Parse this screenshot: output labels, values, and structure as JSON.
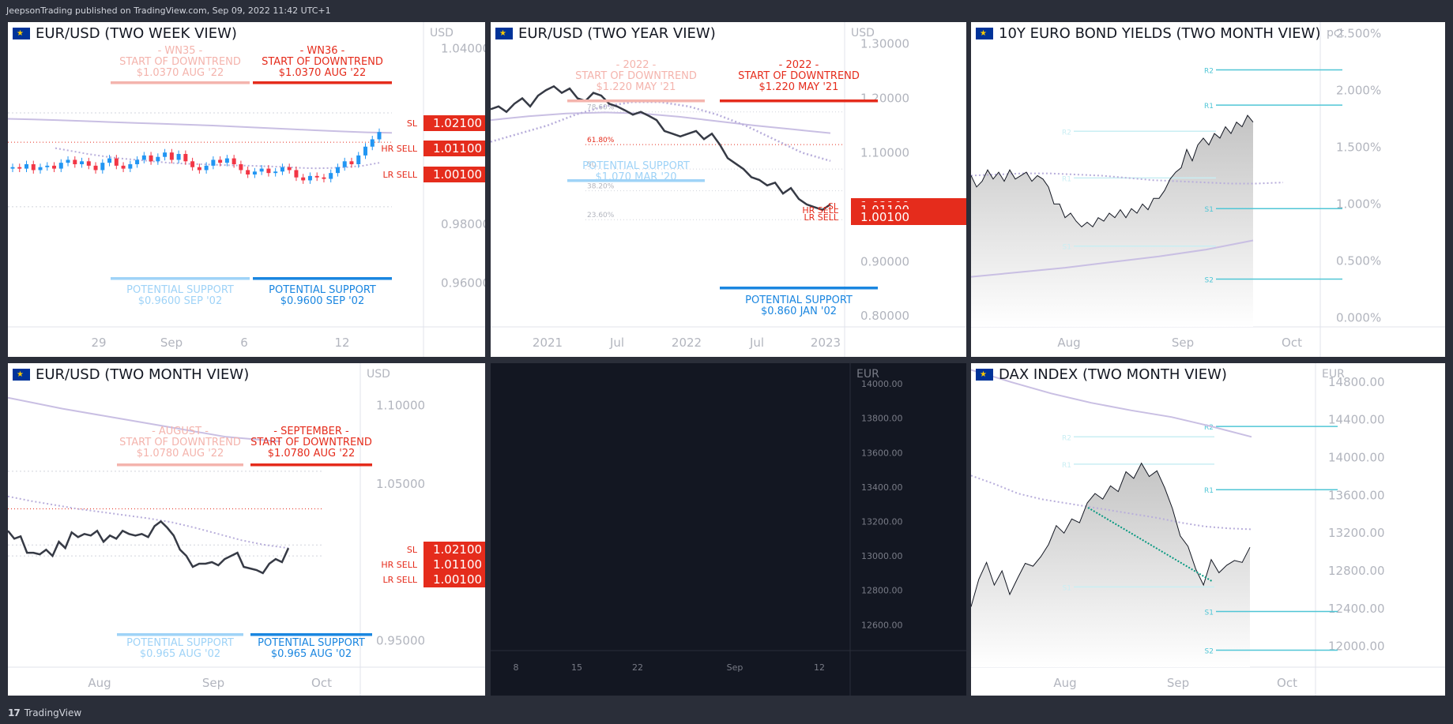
{
  "header": {
    "attribution": "JeepsonTrading published on TradingView.com, Sep 09, 2022 11:42 UTC+1"
  },
  "footer": {
    "brand": "TradingView"
  },
  "chart_data": [
    {
      "id": "p1",
      "type": "candlestick",
      "title": "EUR/USD (TWO WEEK VIEW)",
      "currency": "USD",
      "ylim": [
        0.945,
        1.049
      ],
      "y_ticks": [
        "1.04000",
        "0.98000",
        "0.96000"
      ],
      "x_ticks": [
        "29",
        "Sep",
        "6",
        "12"
      ],
      "levels": [
        {
          "label": "SL",
          "value": "1.02100",
          "price": 1.021
        },
        {
          "label": "HR SELL",
          "value": "1.01100",
          "price": 1.011
        },
        {
          "label": "LR SELL",
          "value": "1.00100",
          "price": 1.001
        }
      ],
      "annotations": [
        {
          "lines": [
            "- WN35 -",
            "START OF DOWNTREND",
            "$1.0370 AUG '22"
          ],
          "color": "#f4b4ad"
        },
        {
          "lines": [
            "- WN36 -",
            "START OF DOWNTREND",
            "$1.0370 AUG '22"
          ],
          "color": "#e52c1c"
        },
        {
          "lines": [
            "POTENTIAL SUPPORT",
            "$0.9600 SEP '02"
          ],
          "color": "#9fd3f7"
        },
        {
          "lines": [
            "POTENTIAL SUPPORT",
            "$0.9600 SEP '02"
          ],
          "color": "#1a86e0"
        }
      ],
      "closes": [
        0.9995,
        0.999,
        1.0005,
        0.9985,
        0.9995,
        1.0,
        0.999,
        1.001,
        1.002,
        1.0005,
        1.0015,
        1.0,
        0.9985,
        1.001,
        1.0025,
        1.0,
        0.999,
        1.0005,
        1.002,
        1.0035,
        1.0015,
        1.003,
        1.0045,
        1.002,
        1.004,
        1.0015,
        0.9995,
        0.9985,
        1.0,
        1.002,
        1.001,
        1.0025,
        1.0005,
        0.9985,
        0.997,
        0.998,
        0.999,
        0.9975,
        0.998,
        0.9995,
        0.9985,
        0.996,
        0.995,
        0.9965,
        0.996,
        0.9955,
        0.9975,
        0.9995,
        1.0015,
        1.0005,
        1.0035,
        1.0065,
        1.009,
        1.0115
      ],
      "ma_fast": [
        1.006,
        1.005,
        1.004,
        1.0032,
        1.0025,
        1.002,
        1.0015,
        1.001,
        1.0007,
        1.0005,
        1.0003,
        1.0001,
        1.0,
        0.9998,
        0.9996,
        0.9993,
        0.9991,
        0.9992,
        0.9995,
        1.0,
        1.001
      ],
      "ma_slow": [
        1.016,
        1.0158,
        1.0155,
        1.0152,
        1.0149,
        1.0146,
        1.0143,
        1.014,
        1.0137,
        1.0133,
        1.0129,
        1.0125,
        1.0121,
        1.0117,
        1.0114,
        1.0112
      ]
    },
    {
      "id": "p2",
      "type": "line",
      "title": "EUR/USD (TWO YEAR VIEW)",
      "currency": "USD",
      "ylim": [
        0.78,
        1.34
      ],
      "y_ticks": [
        "1.30000",
        "1.20000",
        "1.10000",
        "1.00000",
        "0.90000",
        "0.80000"
      ],
      "x_ticks": [
        "2021",
        "Jul",
        "2022",
        "Jul",
        "2023"
      ],
      "fib_labels": [
        "78.60%",
        "61.80%",
        "50.",
        "38.20%",
        "23.60%"
      ],
      "fib_prices": [
        1.175,
        1.115,
        1.07,
        1.03,
        0.977
      ],
      "levels": [
        {
          "label": "SL",
          "value": "1.02100",
          "price": 1.021
        },
        {
          "label": "HR SELL",
          "value": "1.01100",
          "price": 1.011
        },
        {
          "label": "LR SELL",
          "value": "1.00100",
          "price": 1.001
        }
      ],
      "annotations": [
        {
          "lines": [
            "- 2022 -",
            "START OF DOWNTREND",
            "$1.220 MAY '21"
          ],
          "color": "#f4b4ad"
        },
        {
          "lines": [
            "- 2022 -",
            "START OF DOWNTREND",
            "$1.220 MAY '21"
          ],
          "color": "#e52c1c"
        },
        {
          "lines": [
            "POTENTIAL SUPPORT",
            "$1.070 MAR '20"
          ],
          "color": "#9fd3f7"
        },
        {
          "lines": [
            "POTENTIAL SUPPORT",
            "$0.860 JAN '02"
          ],
          "color": "#1a86e0"
        }
      ],
      "price": [
        1.18,
        1.185,
        1.175,
        1.19,
        1.2,
        1.185,
        1.205,
        1.215,
        1.222,
        1.21,
        1.218,
        1.2,
        1.195,
        1.21,
        1.205,
        1.19,
        1.185,
        1.178,
        1.17,
        1.175,
        1.168,
        1.16,
        1.14,
        1.135,
        1.13,
        1.135,
        1.14,
        1.125,
        1.135,
        1.115,
        1.09,
        1.08,
        1.07,
        1.055,
        1.05,
        1.04,
        1.045,
        1.025,
        1.035,
        1.015,
        1.005,
        1.0,
        0.995,
        1.005
      ],
      "ma_fast": [
        1.12,
        1.135,
        1.15,
        1.17,
        1.185,
        1.193,
        1.193,
        1.185,
        1.17,
        1.15,
        1.125,
        1.1,
        1.085
      ],
      "ma_slow": [
        1.16,
        1.167,
        1.172,
        1.174,
        1.172,
        1.166,
        1.158,
        1.15,
        1.143,
        1.136
      ]
    },
    {
      "id": "p3",
      "type": "area",
      "title": "10Y EURO BOND YIELDS (TWO MONTH VIEW)",
      "currency": "pct",
      "ylim": [
        -0.08,
        2.6
      ],
      "y_ticks": [
        "2.500%",
        "2.000%",
        "1.500%",
        "1.000%",
        "0.500%",
        "0.000%"
      ],
      "x_ticks": [
        "Aug",
        "Sep",
        "Oct"
      ],
      "pivots": [
        {
          "label": "R2",
          "price": 2.18
        },
        {
          "label": "R1",
          "price": 1.87
        },
        {
          "label": "R2",
          "price": 1.64
        },
        {
          "label": "R1",
          "price": 1.23
        },
        {
          "label": "S1",
          "price": 0.96
        },
        {
          "label": "S1",
          "price": 0.63
        },
        {
          "label": "S2",
          "price": 0.34
        }
      ],
      "values": [
        1.25,
        1.15,
        1.2,
        1.3,
        1.22,
        1.28,
        1.2,
        1.3,
        1.22,
        1.25,
        1.28,
        1.2,
        1.25,
        1.22,
        1.15,
        1.0,
        1.0,
        0.88,
        0.92,
        0.85,
        0.8,
        0.84,
        0.8,
        0.88,
        0.85,
        0.92,
        0.88,
        0.95,
        0.88,
        0.96,
        0.92,
        1.0,
        0.95,
        1.05,
        1.05,
        1.12,
        1.22,
        1.28,
        1.32,
        1.48,
        1.38,
        1.52,
        1.58,
        1.52,
        1.62,
        1.58,
        1.68,
        1.62,
        1.72,
        1.68,
        1.78,
        1.72
      ],
      "ma_fast": [
        1.25,
        1.26,
        1.27,
        1.27,
        1.26,
        1.25,
        1.23,
        1.21,
        1.2,
        1.19,
        1.18,
        1.18,
        1.19
      ],
      "ma_slow": [
        0.36,
        0.4,
        0.44,
        0.49,
        0.54,
        0.6,
        0.68
      ]
    },
    {
      "id": "p4",
      "type": "line",
      "title": "EUR/USD (TWO MONTH VIEW)",
      "currency": "USD",
      "ylim": [
        0.933,
        1.127
      ],
      "y_ticks": [
        "1.10000",
        "1.05000",
        "0.95000"
      ],
      "x_ticks": [
        "Aug",
        "Sep",
        "Oct"
      ],
      "levels": [
        {
          "label": "SL",
          "value": "1.02100",
          "price": 1.021
        },
        {
          "label": "HR SELL",
          "value": "1.01100",
          "price": 1.011
        },
        {
          "label": "LR SELL",
          "value": "1.00100",
          "price": 1.001
        }
      ],
      "annotations": [
        {
          "lines": [
            "- AUGUST -",
            "START OF DOWNTREND",
            "$1.0780 AUG '22"
          ],
          "color": "#f4b4ad"
        },
        {
          "lines": [
            "- SEPTEMBER -",
            "START OF DOWNTREND",
            "$1.0780 AUG '22"
          ],
          "color": "#e52c1c"
        },
        {
          "lines": [
            "POTENTIAL SUPPORT",
            "$0.965 AUG '02"
          ],
          "color": "#9fd3f7"
        },
        {
          "lines": [
            "POTENTIAL SUPPORT",
            "$0.965 AUG '02"
          ],
          "color": "#1a86e0"
        }
      ],
      "values": [
        1.02,
        1.015,
        1.0165,
        1.006,
        1.006,
        1.005,
        1.008,
        1.004,
        1.013,
        1.009,
        1.019,
        1.016,
        1.018,
        1.017,
        1.02,
        1.013,
        1.017,
        1.015,
        1.02,
        1.018,
        1.017,
        1.018,
        1.016,
        1.023,
        1.026,
        1.022,
        1.017,
        1.008,
        1.004,
        0.997,
        0.999,
        0.999,
        1.0,
        0.998,
        1.002,
        1.004,
        1.006,
        0.997,
        0.996,
        0.995,
        0.993,
        0.999,
        1.002,
        1.0,
        1.009
      ],
      "ma_fast": [
        1.042,
        1.039,
        1.0365,
        1.034,
        1.032,
        1.03,
        1.028,
        1.0255,
        1.022,
        1.018,
        1.014,
        1.011,
        1.009
      ],
      "ma_slow": [
        1.105,
        1.098,
        1.092,
        1.086,
        1.08,
        1.077
      ]
    },
    {
      "id": "p5",
      "type": "empty",
      "title": "",
      "currency": "EUR",
      "ylim": [
        12450,
        14120
      ],
      "y_ticks": [
        "14000.00",
        "13800.00",
        "13600.00",
        "13400.00",
        "13200.00",
        "13000.00",
        "12800.00",
        "12600.00"
      ],
      "x_ticks": [
        "8",
        "15",
        "22",
        "Sep",
        "12"
      ]
    },
    {
      "id": "p6",
      "type": "area",
      "title": "DAX INDEX (TWO MONTH VIEW)",
      "currency": "EUR",
      "ylim": [
        11780,
        15000
      ],
      "y_ticks": [
        "14800.00",
        "14400.00",
        "14000.00",
        "13600.00",
        "13200.00",
        "12800.00",
        "12400.00",
        "12000.00"
      ],
      "x_ticks": [
        "Aug",
        "Sep",
        "Oct"
      ],
      "pivots": [
        {
          "label": "R2",
          "price": 14330
        },
        {
          "label": "R2",
          "price": 14220
        },
        {
          "label": "R1",
          "price": 13930
        },
        {
          "label": "R1",
          "price": 13660
        },
        {
          "label": "S1",
          "price": 12630
        },
        {
          "label": "S1",
          "price": 12370
        },
        {
          "label": "S2",
          "price": 11960
        }
      ],
      "values": [
        12420,
        12710,
        12890,
        12650,
        12800,
        12550,
        12720,
        12880,
        12850,
        12950,
        13080,
        13280,
        13200,
        13350,
        13310,
        13520,
        13620,
        13560,
        13700,
        13640,
        13850,
        13780,
        13940,
        13800,
        13860,
        13680,
        13460,
        13170,
        13060,
        12820,
        12650,
        12920,
        12780,
        12860,
        12910,
        12890,
        13050
      ],
      "trend": [
        13470,
        12690
      ],
      "ma_fast": [
        13810,
        13720,
        13620,
        13560,
        13520,
        13480,
        13440,
        13400,
        13360,
        13310,
        13270,
        13250,
        13240
      ],
      "ma_slow": [
        14930,
        14800,
        14680,
        14580,
        14500,
        14430,
        14330,
        14220
      ]
    }
  ]
}
